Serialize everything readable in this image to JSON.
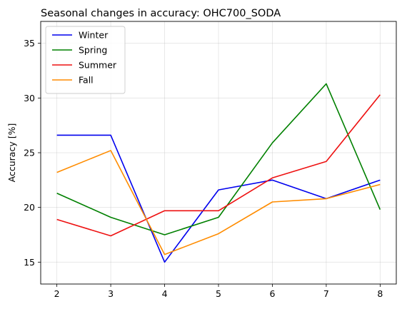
{
  "chart_data": {
    "type": "line",
    "title": "Seasonal changes in accuracy: OHC700_SODA",
    "xlabel": "",
    "ylabel": "Accuracy [%]",
    "x": [
      2,
      3,
      4,
      5,
      6,
      7,
      8
    ],
    "xlim": [
      1.7,
      8.3
    ],
    "ylim": [
      13,
      37
    ],
    "xticks": [
      2,
      3,
      4,
      5,
      6,
      7,
      8
    ],
    "yticks": [
      15,
      20,
      25,
      30,
      35
    ],
    "grid": true,
    "legend_position": "top-left",
    "series": [
      {
        "name": "Winter",
        "color": "#0000ee",
        "values": [
          26.6,
          26.6,
          15.0,
          21.6,
          22.5,
          20.8,
          22.5
        ]
      },
      {
        "name": "Spring",
        "color": "#008000",
        "values": [
          21.3,
          19.1,
          17.5,
          19.1,
          25.9,
          31.3,
          19.8
        ]
      },
      {
        "name": "Summer",
        "color": "#ee1111",
        "values": [
          18.9,
          17.4,
          19.7,
          19.7,
          22.7,
          24.2,
          30.3
        ]
      },
      {
        "name": "Fall",
        "color": "#ff8c00",
        "values": [
          23.2,
          25.2,
          15.7,
          17.6,
          20.5,
          20.8,
          22.1
        ]
      }
    ]
  }
}
